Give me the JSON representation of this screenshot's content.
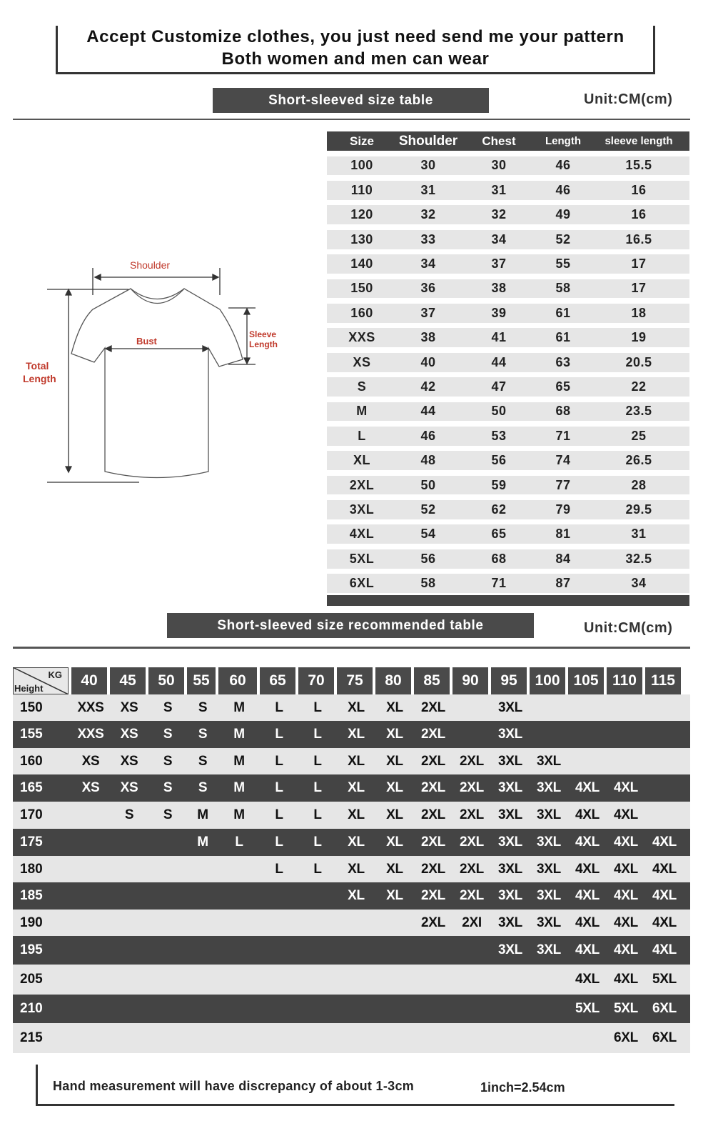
{
  "header": {
    "line1": "Accept Customize clothes, you just need send me your pattern",
    "line2": "Both women and men can wear"
  },
  "size_table": {
    "title": "Short-sleeved size  table",
    "unit": "Unit:CM(cm)",
    "columns": [
      "Size",
      "Shoulder",
      "Chest",
      "Length",
      "sleeve length"
    ],
    "rows": [
      [
        "100",
        "30",
        "30",
        "46",
        "15.5"
      ],
      [
        "110",
        "31",
        "31",
        "46",
        "16"
      ],
      [
        "120",
        "32",
        "32",
        "49",
        "16"
      ],
      [
        "130",
        "33",
        "34",
        "52",
        "16.5"
      ],
      [
        "140",
        "34",
        "37",
        "55",
        "17"
      ],
      [
        "150",
        "36",
        "38",
        "58",
        "17"
      ],
      [
        "160",
        "37",
        "39",
        "61",
        "18"
      ],
      [
        "XXS",
        "38",
        "41",
        "61",
        "19"
      ],
      [
        "XS",
        "40",
        "44",
        "63",
        "20.5"
      ],
      [
        "S",
        "42",
        "47",
        "65",
        "22"
      ],
      [
        "M",
        "44",
        "50",
        "68",
        "23.5"
      ],
      [
        "L",
        "46",
        "53",
        "71",
        "25"
      ],
      [
        "XL",
        "48",
        "56",
        "74",
        "26.5"
      ],
      [
        "2XL",
        "50",
        "59",
        "77",
        "28"
      ],
      [
        "3XL",
        "52",
        "62",
        "79",
        "29.5"
      ],
      [
        "4XL",
        "54",
        "65",
        "81",
        "31"
      ],
      [
        "5XL",
        "56",
        "68",
        "84",
        "32.5"
      ],
      [
        "6XL",
        "58",
        "71",
        "87",
        "34"
      ]
    ]
  },
  "diagram": {
    "shoulder": "Shoulder",
    "bust": "Bust",
    "sleeve_length": [
      "Sleeve",
      "Length"
    ],
    "total_length": [
      "Total",
      "Length"
    ],
    "label_color": "#c0392b"
  },
  "recommend_table": {
    "title": "Short-sleeved size recommended table",
    "unit": "Unit:CM(cm)",
    "corner_kg": "KG",
    "corner_height": "Height",
    "weights": [
      "40",
      "45",
      "50",
      "55",
      "60",
      "65",
      "70",
      "75",
      "80",
      "85",
      "90",
      "95",
      "100",
      "105",
      "110",
      "115"
    ],
    "rows": [
      {
        "height": "150",
        "sizes": [
          "XXS",
          "XS",
          "S",
          "S",
          "M",
          "L",
          "L",
          "XL",
          "XL",
          "2XL",
          "",
          "3XL",
          "",
          "",
          "",
          ""
        ]
      },
      {
        "height": "155",
        "sizes": [
          "XXS",
          "XS",
          "S",
          "S",
          "M",
          "L",
          "L",
          "XL",
          "XL",
          "2XL",
          "",
          "3XL",
          "",
          "",
          "",
          ""
        ]
      },
      {
        "height": "160",
        "sizes": [
          "XS",
          "XS",
          "S",
          "S",
          "M",
          "L",
          "L",
          "XL",
          "XL",
          "2XL",
          "2XL",
          "3XL",
          "3XL",
          "",
          "",
          ""
        ]
      },
      {
        "height": "165",
        "sizes": [
          "XS",
          "XS",
          "S",
          "S",
          "M",
          "L",
          "L",
          "XL",
          "XL",
          "2XL",
          "2XL",
          "3XL",
          "3XL",
          "4XL",
          "4XL",
          ""
        ]
      },
      {
        "height": "170",
        "sizes": [
          "",
          "S",
          "S",
          "M",
          "M",
          "L",
          "L",
          "XL",
          "XL",
          "2XL",
          "2XL",
          "3XL",
          "3XL",
          "4XL",
          "4XL",
          ""
        ]
      },
      {
        "height": "175",
        "sizes": [
          "",
          "",
          "",
          "M",
          "L",
          "L",
          "L",
          "XL",
          "XL",
          "2XL",
          "2XL",
          "3XL",
          "3XL",
          "4XL",
          "4XL",
          "4XL"
        ]
      },
      {
        "height": "180",
        "sizes": [
          "",
          "",
          "",
          "",
          "",
          "L",
          "L",
          "XL",
          "XL",
          "2XL",
          "2XL",
          "3XL",
          "3XL",
          "4XL",
          "4XL",
          "4XL"
        ]
      },
      {
        "height": "185",
        "sizes": [
          "",
          "",
          "",
          "",
          "",
          "",
          "",
          "XL",
          "XL",
          "2XL",
          "2XL",
          "3XL",
          "3XL",
          "4XL",
          "4XL",
          "4XL"
        ]
      },
      {
        "height": "190",
        "sizes": [
          "",
          "",
          "",
          "",
          "",
          "",
          "",
          "",
          "",
          "2XL",
          "2XI",
          "3XL",
          "3XL",
          "4XL",
          "4XL",
          "4XL"
        ]
      },
      {
        "height": "195",
        "sizes": [
          "",
          "",
          "",
          "",
          "",
          "",
          "",
          "",
          "",
          "",
          "",
          "3XL",
          "3XL",
          "4XL",
          "4XL",
          "4XL"
        ]
      },
      {
        "height": "205",
        "sizes": [
          "",
          "",
          "",
          "",
          "",
          "",
          "",
          "",
          "",
          "",
          "",
          "",
          "",
          "4XL",
          "4XL",
          "5XL"
        ]
      },
      {
        "height": "210",
        "sizes": [
          "",
          "",
          "",
          "",
          "",
          "",
          "",
          "",
          "",
          "",
          "",
          "",
          "",
          "5XL",
          "5XL",
          "6XL"
        ]
      },
      {
        "height": "215",
        "sizes": [
          "",
          "",
          "",
          "",
          "",
          "",
          "",
          "",
          "",
          "",
          "",
          "",
          "",
          "",
          "6XL",
          "6XL"
        ]
      }
    ]
  },
  "footer": {
    "note": "Hand measurement will have discrepancy of about  1-3cm",
    "conversion": "1inch=2.54cm"
  },
  "colors": {
    "dark": "#444444",
    "light": "#e6e6e6",
    "accent": "#c0392b"
  }
}
